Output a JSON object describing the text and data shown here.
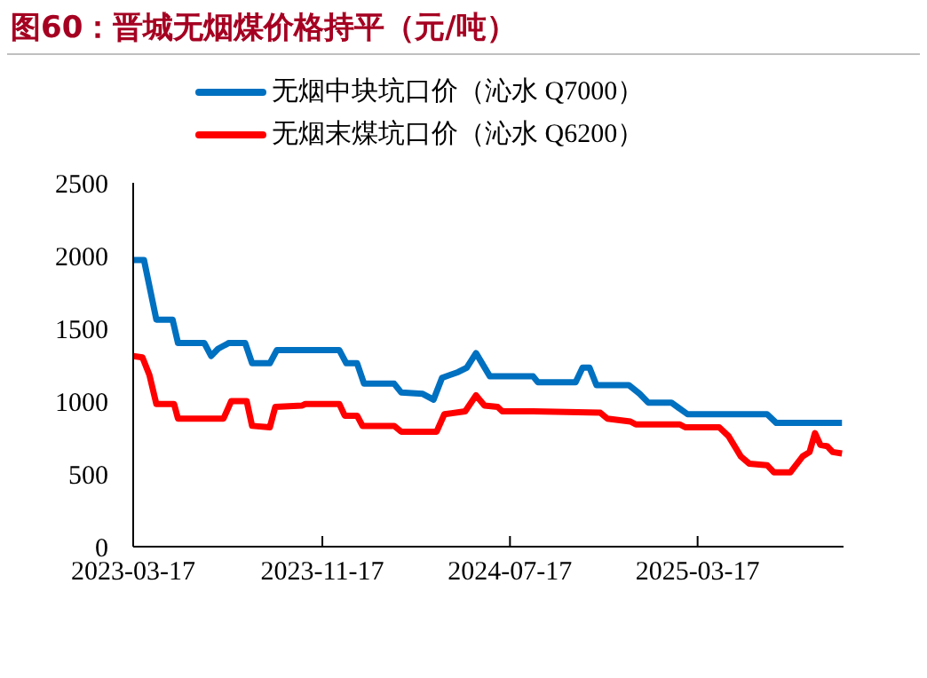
{
  "chart_data": {
    "type": "line",
    "title": "图60：晋城无烟煤价格持平（元/吨）",
    "xlim": [
      "2023-03-17",
      "2025-09-22"
    ],
    "xticks": [
      "2023-03-17",
      "2023-11-17",
      "2024-07-17",
      "2025-03-17"
    ],
    "ylim": [
      0,
      2500
    ],
    "yticks": [
      0,
      500,
      1000,
      1500,
      2000,
      2500
    ],
    "legend": "top",
    "marker": "none",
    "line_style": "solid",
    "series": [
      {
        "name": "无烟中块坑口价（沁水 Q7000）",
        "color": "#0070c0",
        "x": [
          "2023-03-17",
          "2023-03-31",
          "2023-04-16",
          "2023-05-07",
          "2023-05-14",
          "2023-06-17",
          "2023-06-26",
          "2023-07-05",
          "2023-07-19",
          "2023-08-09",
          "2023-08-18",
          "2023-09-10",
          "2023-09-19",
          "2023-12-09",
          "2023-12-18",
          "2024-01-01",
          "2024-01-10",
          "2024-02-18",
          "2024-02-27",
          "2024-03-26",
          "2024-04-09",
          "2024-04-20",
          "2024-05-11",
          "2024-05-22",
          "2024-06-03",
          "2024-06-21",
          "2024-08-16",
          "2024-08-22",
          "2024-10-10",
          "2024-10-19",
          "2024-10-28",
          "2024-11-06",
          "2024-12-18",
          "2025-01-01",
          "2025-01-12",
          "2025-02-11",
          "2025-03-04",
          "2025-06-15",
          "2025-06-27",
          "2025-09-20"
        ],
        "values": [
          1970,
          1970,
          1560,
          1560,
          1400,
          1400,
          1310,
          1360,
          1400,
          1400,
          1260,
          1260,
          1350,
          1350,
          1260,
          1260,
          1120,
          1120,
          1060,
          1050,
          1010,
          1160,
          1200,
          1230,
          1330,
          1170,
          1170,
          1130,
          1130,
          1230,
          1230,
          1110,
          1110,
          1050,
          990,
          990,
          910,
          910,
          850,
          850
        ]
      },
      {
        "name": "无烟末煤坑口价（沁水 Q6200）",
        "color": "#ff0000",
        "x": [
          "2023-03-17",
          "2023-03-29",
          "2023-04-07",
          "2023-04-16",
          "2023-05-09",
          "2023-05-14",
          "2023-07-12",
          "2023-07-22",
          "2023-08-11",
          "2023-08-18",
          "2023-09-10",
          "2023-09-17",
          "2023-10-22",
          "2023-10-26",
          "2023-12-09",
          "2023-12-16",
          "2024-01-01",
          "2024-01-08",
          "2024-02-18",
          "2024-02-27",
          "2024-04-13",
          "2024-04-23",
          "2024-05-20",
          "2024-06-03",
          "2024-06-14",
          "2024-07-01",
          "2024-07-07",
          "2024-08-16",
          "2024-11-11",
          "2024-11-20",
          "2024-12-20",
          "2024-12-27",
          "2025-02-22",
          "2025-03-01",
          "2025-04-14",
          "2025-04-26",
          "2025-05-12",
          "2025-05-23",
          "2025-06-15",
          "2025-06-24",
          "2025-07-15",
          "2025-07-31",
          "2025-08-09",
          "2025-08-16",
          "2025-08-23",
          "2025-09-01",
          "2025-09-08",
          "2025-09-20"
        ],
        "values": [
          1310,
          1300,
          1180,
          980,
          980,
          880,
          880,
          1000,
          1000,
          830,
          820,
          960,
          970,
          980,
          980,
          900,
          900,
          830,
          830,
          790,
          790,
          910,
          930,
          1040,
          970,
          960,
          930,
          930,
          920,
          880,
          860,
          840,
          840,
          820,
          820,
          760,
          620,
          570,
          560,
          510,
          510,
          620,
          650,
          780,
          700,
          690,
          650,
          640
        ]
      }
    ]
  }
}
